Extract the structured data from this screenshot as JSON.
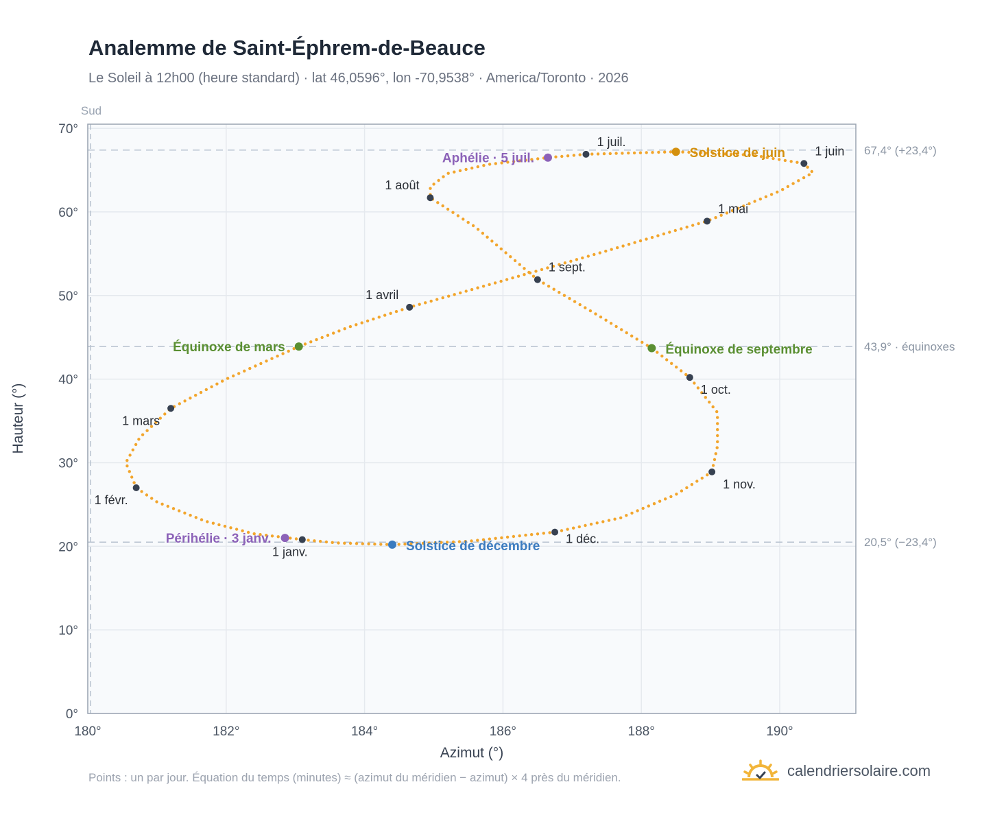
{
  "header": {
    "title": "Analemme de Saint-Éphrem-de-Beauce",
    "subtitle": "Le Soleil à 12h00 (heure standard) · lat 46,0596°, lon -70,9538° · America/Toronto · 2026"
  },
  "footer": {
    "note": "Points : un par jour. Équation du temps (minutes) ≈ (azimut du méridien − azimut) × 4 près du méridien.",
    "brand": "calendriersolaire.com"
  },
  "colors": {
    "curve": "#f2a52c",
    "month_marker": "#374151",
    "solstice_june": "#d4900e",
    "solstice_december": "#3b7bbf",
    "equinox": "#5a8f32",
    "apsis": "#8c62b8",
    "reference_line": "#b7c2cf",
    "grid": "#e5e9ee",
    "plot_background": "#f8fafc"
  },
  "chart_data": {
    "type": "scatter",
    "xlabel": "Azimut (°)",
    "ylabel": "Hauteur (°)",
    "xlim": [
      180,
      191.1
    ],
    "ylim": [
      0,
      70.5
    ],
    "xticks": [
      180,
      182,
      184,
      186,
      188,
      190
    ],
    "yticks": [
      0,
      10,
      20,
      30,
      40,
      50,
      60,
      70
    ],
    "x_tick_labels": [
      "180°",
      "182°",
      "184°",
      "186°",
      "188°",
      "190°"
    ],
    "y_tick_labels": [
      "0°",
      "10°",
      "20°",
      "30°",
      "40°",
      "50°",
      "60°",
      "70°"
    ],
    "grid": true,
    "south_label": "Sud",
    "reference_lines": [
      {
        "y": 67.4,
        "label": "67,4° (+23,4°)"
      },
      {
        "y": 43.9,
        "label": "43,9° · équinoxes"
      },
      {
        "y": 20.5,
        "label": "20,5° (−23,4°)"
      }
    ],
    "south_line_x": 180,
    "curve_waypoints": [
      [
        183.1,
        20.8
      ],
      [
        182.4,
        21.5
      ],
      [
        181.7,
        23.0
      ],
      [
        181.0,
        25.3
      ],
      [
        180.7,
        27.0
      ],
      [
        180.55,
        30.0
      ],
      [
        180.75,
        33.0
      ],
      [
        181.2,
        36.5
      ],
      [
        182.0,
        40.0
      ],
      [
        183.05,
        43.9
      ],
      [
        183.8,
        46.3
      ],
      [
        184.65,
        48.6
      ],
      [
        185.8,
        51.3
      ],
      [
        187.4,
        55.1
      ],
      [
        188.95,
        58.9
      ],
      [
        190.0,
        62.5
      ],
      [
        190.48,
        64.7
      ],
      [
        190.35,
        65.8
      ],
      [
        189.6,
        66.8
      ],
      [
        188.5,
        67.2
      ],
      [
        187.2,
        66.9
      ],
      [
        186.65,
        66.5
      ],
      [
        185.8,
        65.7
      ],
      [
        185.2,
        64.6
      ],
      [
        184.95,
        63.0
      ],
      [
        184.95,
        61.7
      ],
      [
        185.6,
        58.2
      ],
      [
        186.5,
        51.9
      ],
      [
        187.4,
        47.5
      ],
      [
        188.15,
        43.7
      ],
      [
        188.7,
        40.2
      ],
      [
        189.1,
        36.0
      ],
      [
        189.1,
        32.0
      ],
      [
        189.02,
        28.9
      ],
      [
        188.5,
        26.2
      ],
      [
        187.7,
        23.4
      ],
      [
        186.75,
        21.7
      ],
      [
        185.5,
        20.6
      ],
      [
        184.4,
        20.2
      ],
      [
        183.6,
        20.4
      ],
      [
        183.1,
        20.8
      ]
    ],
    "points_per_year": 365,
    "month_markers": [
      {
        "label": "1 janv.",
        "x": 183.1,
        "y": 20.8
      },
      {
        "label": "1 févr.",
        "x": 180.7,
        "y": 27.0
      },
      {
        "label": "1 mars",
        "x": 181.2,
        "y": 36.5
      },
      {
        "label": "1 avril",
        "x": 184.65,
        "y": 48.6
      },
      {
        "label": "1 mai",
        "x": 188.95,
        "y": 58.9
      },
      {
        "label": "1 juin",
        "x": 190.35,
        "y": 65.8
      },
      {
        "label": "1 juil.",
        "x": 187.2,
        "y": 66.9
      },
      {
        "label": "1 août",
        "x": 184.95,
        "y": 61.7
      },
      {
        "label": "1 sept.",
        "x": 186.5,
        "y": 51.9
      },
      {
        "label": "1 oct.",
        "x": 188.7,
        "y": 40.2
      },
      {
        "label": "1 nov.",
        "x": 189.02,
        "y": 28.9
      },
      {
        "label": "1 déc.",
        "x": 186.75,
        "y": 21.7
      }
    ],
    "events": [
      {
        "label": "Solstice de juin",
        "x": 188.5,
        "y": 67.2,
        "kind": "solstice_june"
      },
      {
        "label": "Solstice de décembre",
        "x": 184.4,
        "y": 20.2,
        "kind": "solstice_december"
      },
      {
        "label": "Équinoxe de mars",
        "x": 183.05,
        "y": 43.9,
        "kind": "equinox"
      },
      {
        "label": "Équinoxe de septembre",
        "x": 188.15,
        "y": 43.7,
        "kind": "equinox"
      },
      {
        "label": "Aphélie · 5 juil.",
        "x": 186.65,
        "y": 66.5,
        "kind": "apsis"
      },
      {
        "label": "Périhélie · 3 janv.",
        "x": 182.85,
        "y": 21.0,
        "kind": "apsis"
      }
    ]
  }
}
